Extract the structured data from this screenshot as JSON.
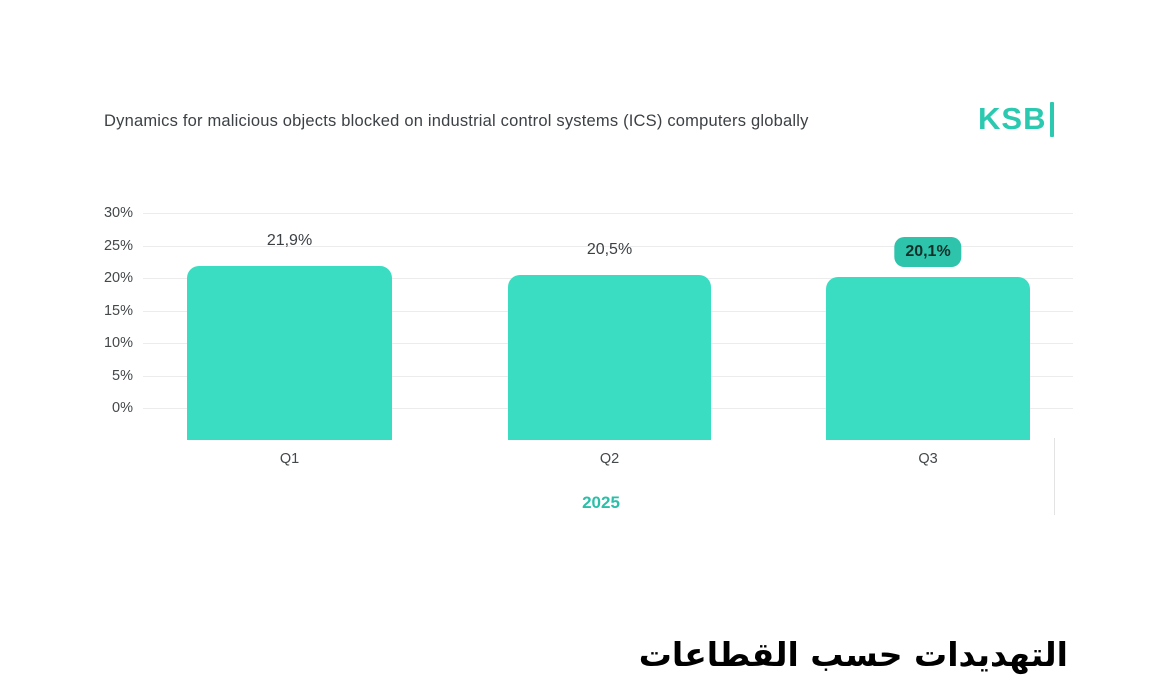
{
  "header": {
    "title": "Dynamics for malicious objects blocked on industrial control systems (ICS) computers globally",
    "logo_text": "KSB"
  },
  "chart_data": {
    "type": "bar",
    "categories": [
      "Q1",
      "Q2",
      "Q3"
    ],
    "values": [
      21.9,
      20.5,
      20.1
    ],
    "value_labels": [
      "21,9%",
      "20,5%",
      "20,1%"
    ],
    "highlighted_index": 2,
    "yticks": [
      "30%",
      "25%",
      "20%",
      "15%",
      "10%",
      "5%",
      "0%"
    ],
    "ylim": [
      0,
      30
    ],
    "x_group_label": "2025",
    "grid": "horizontal",
    "legend_position": "none",
    "title": "Dynamics for malicious objects blocked on industrial control systems (ICS) computers globally",
    "xlabel": "2025",
    "ylabel": ""
  },
  "footer": {
    "section_title_ar": "التهديدات حسب القطاعات"
  },
  "colors": {
    "bar": "#3addc2",
    "badge": "#2ec4ab",
    "logo": "#2bc9af",
    "year": "#29bfa8",
    "grid": "#ececec"
  }
}
